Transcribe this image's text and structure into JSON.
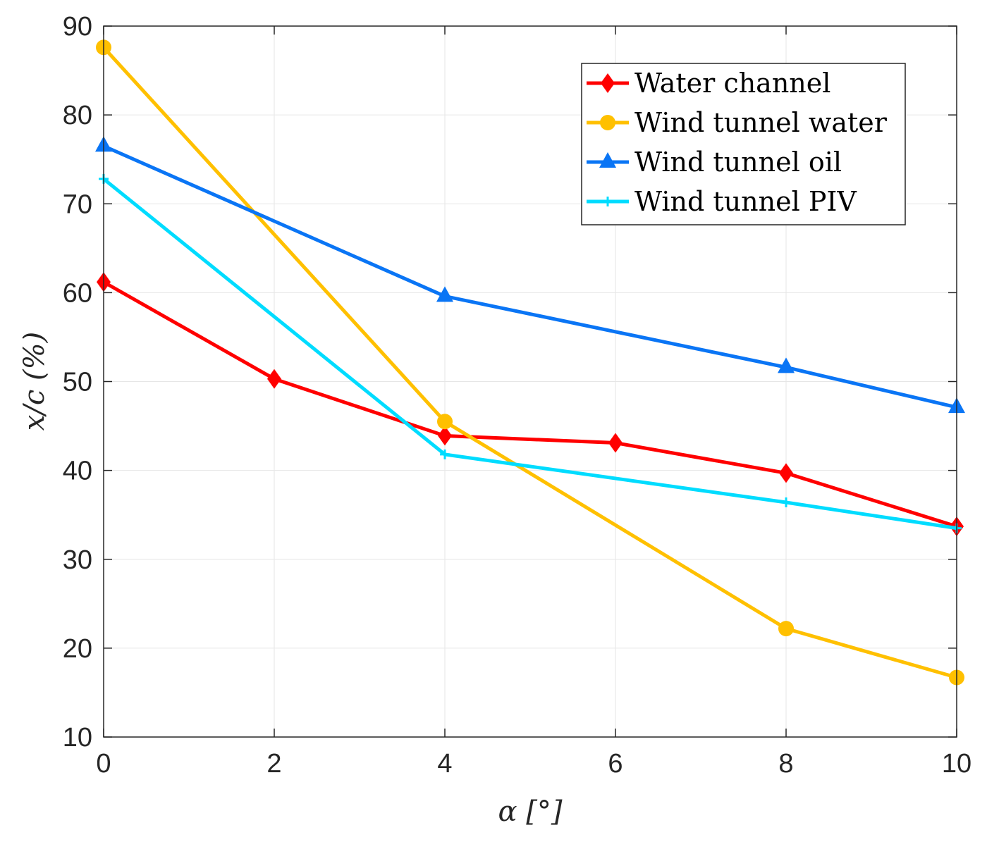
{
  "chart_data": {
    "type": "line",
    "title": "",
    "xlabel": "α [°]",
    "ylabel": "x/c (%)",
    "xlim": [
      0,
      10
    ],
    "ylim": [
      10,
      90
    ],
    "xticks": [
      0,
      2,
      4,
      6,
      8,
      10
    ],
    "yticks": [
      10,
      20,
      30,
      40,
      50,
      60,
      70,
      80,
      90
    ],
    "grid": true,
    "legend_position": "top-right",
    "series": [
      {
        "name": "Water channel",
        "color": "#ff0000",
        "marker": "diamond",
        "x": [
          0,
          2,
          4,
          6,
          8,
          10
        ],
        "y": [
          61.2,
          50.3,
          43.9,
          43.1,
          39.7,
          33.7
        ]
      },
      {
        "name": "Wind tunnel water",
        "color": "#ffc000",
        "marker": "circle",
        "x": [
          0,
          4,
          8,
          10
        ],
        "y": [
          87.6,
          45.5,
          22.2,
          16.7
        ]
      },
      {
        "name": "Wind tunnel oil",
        "color": "#0a75f5",
        "marker": "triangle",
        "x": [
          0,
          4,
          8,
          10
        ],
        "y": [
          76.5,
          59.6,
          51.6,
          47.1
        ]
      },
      {
        "name": "Wind tunnel PIV",
        "color": "#00dcff",
        "marker": "plus",
        "x": [
          0,
          4,
          8,
          10
        ],
        "y": [
          72.8,
          41.8,
          36.4,
          33.5
        ]
      }
    ]
  }
}
